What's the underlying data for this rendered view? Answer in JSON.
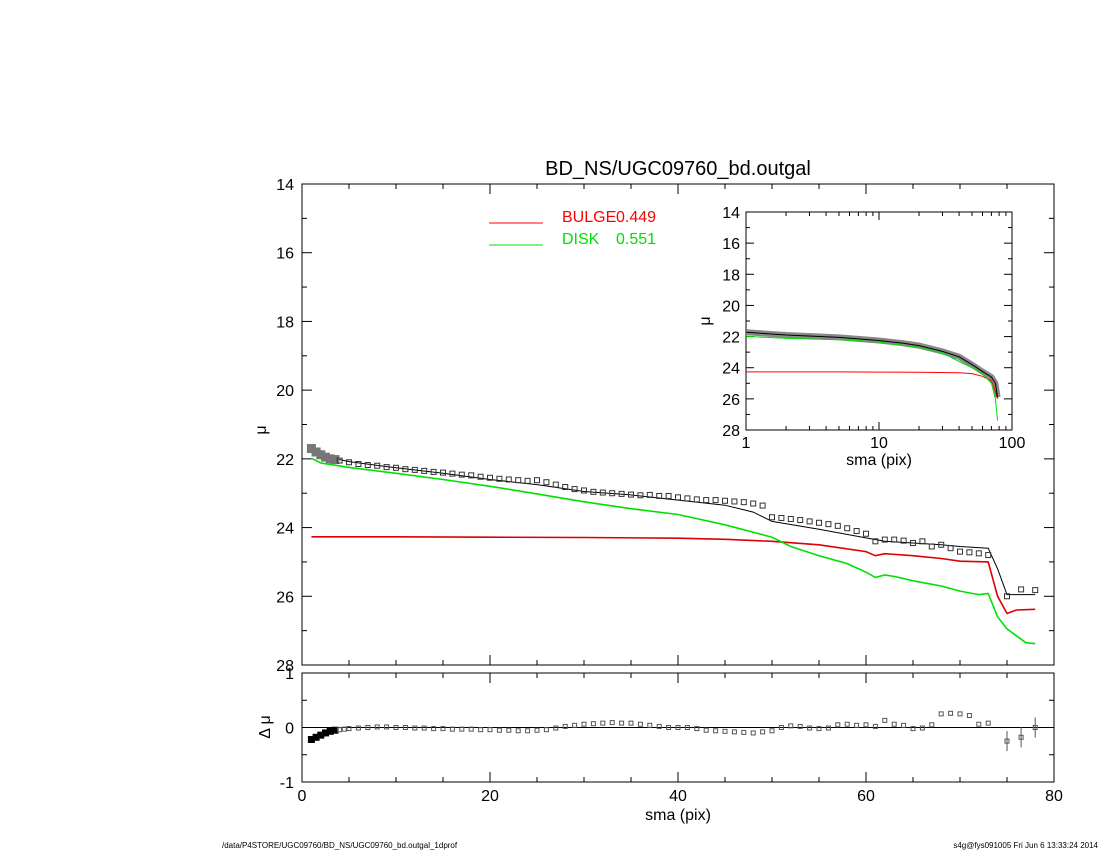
{
  "chart_data": [
    {
      "type": "line",
      "panel": "main",
      "title": "BD_NS/UGC09760_bd.outgal",
      "xlabel": "",
      "ylabel": "μ",
      "xlim": [
        0,
        80
      ],
      "ylim": [
        28,
        14
      ],
      "xticks": [
        "0",
        "20",
        "40",
        "60",
        "80"
      ],
      "yticks": [
        "14",
        "16",
        "18",
        "20",
        "22",
        "24",
        "26",
        "28"
      ],
      "legend": {
        "placement": "top-center",
        "entries": [
          {
            "label": "BULGE",
            "value": "0.449",
            "color": "#ff0000"
          },
          {
            "label": "DISK",
            "value": "0.551",
            "color": "#00e000"
          }
        ]
      },
      "series": [
        {
          "name": "BULGE",
          "color": "#dd0000",
          "x": [
            1,
            10,
            20,
            30,
            40,
            45,
            50,
            55,
            60,
            61,
            62,
            65,
            68,
            70,
            73,
            74,
            75,
            76,
            78
          ],
          "y": [
            24.27,
            24.27,
            24.28,
            24.29,
            24.31,
            24.34,
            24.4,
            24.5,
            24.7,
            24.82,
            24.76,
            24.82,
            24.9,
            24.98,
            25.0,
            26.0,
            26.5,
            26.4,
            26.38
          ]
        },
        {
          "name": "DISK",
          "color": "#00e000",
          "x": [
            1,
            2,
            5,
            10,
            15,
            20,
            25,
            30,
            35,
            40,
            45,
            50,
            52,
            55,
            58,
            60,
            61,
            62,
            63,
            65,
            68,
            70,
            72,
            73,
            74,
            75,
            76,
            77,
            78
          ],
          "y": [
            21.98,
            22.12,
            22.25,
            22.42,
            22.6,
            22.8,
            23.02,
            23.25,
            23.45,
            23.62,
            23.92,
            24.28,
            24.55,
            24.82,
            25.05,
            25.3,
            25.45,
            25.38,
            25.42,
            25.55,
            25.7,
            25.85,
            25.95,
            25.92,
            26.6,
            26.95,
            27.15,
            27.35,
            27.38
          ]
        },
        {
          "name": "",
          "color": "#000000",
          "x": [
            1,
            2,
            5,
            10,
            15,
            20,
            25,
            30,
            35,
            40,
            45,
            48,
            50,
            55,
            60,
            62,
            65,
            68,
            70,
            73,
            74,
            75,
            78
          ],
          "y": [
            21.72,
            21.9,
            22.08,
            22.26,
            22.42,
            22.6,
            22.75,
            22.95,
            23.05,
            23.2,
            23.35,
            23.55,
            23.82,
            24.05,
            24.3,
            24.4,
            24.45,
            24.5,
            24.55,
            24.6,
            25.2,
            25.95,
            25.95
          ]
        }
      ],
      "points": {
        "name": "",
        "marker": "square",
        "x": [
          1,
          1.5,
          2,
          2.5,
          3,
          3.5,
          4,
          5,
          6,
          7,
          8,
          9,
          10,
          11,
          12,
          13,
          14,
          15,
          16,
          17,
          18,
          19,
          20,
          21,
          22,
          23,
          24,
          25,
          26,
          27,
          28,
          29,
          30,
          31,
          32,
          33,
          34,
          35,
          36,
          37,
          38,
          39,
          40,
          41,
          42,
          43,
          44,
          45,
          46,
          47,
          48,
          49,
          50,
          51,
          52,
          53,
          54,
          55,
          56,
          57,
          58,
          59,
          60,
          61,
          62,
          63,
          64,
          65,
          66,
          67,
          68,
          69,
          70,
          71,
          72,
          73,
          75,
          76.5,
          78
        ],
        "y": [
          21.7,
          21.8,
          21.88,
          21.95,
          22.0,
          22.02,
          22.05,
          22.1,
          22.15,
          22.18,
          22.2,
          22.24,
          22.26,
          22.3,
          22.32,
          22.35,
          22.38,
          22.4,
          22.43,
          22.46,
          22.48,
          22.52,
          22.55,
          22.58,
          22.6,
          22.62,
          22.64,
          22.62,
          22.68,
          22.75,
          22.82,
          22.88,
          22.92,
          22.96,
          22.98,
          23.0,
          23.02,
          23.04,
          23.06,
          23.05,
          23.08,
          23.08,
          23.12,
          23.15,
          23.18,
          23.2,
          23.2,
          23.22,
          23.24,
          23.26,
          23.3,
          23.36,
          23.7,
          23.72,
          23.75,
          23.78,
          23.82,
          23.86,
          23.9,
          23.95,
          24.02,
          24.1,
          24.18,
          24.4,
          24.35,
          24.35,
          24.38,
          24.45,
          24.4,
          24.55,
          24.5,
          24.6,
          24.7,
          24.72,
          24.75,
          24.8,
          26.0,
          25.8,
          25.82
        ]
      }
    },
    {
      "type": "scatter",
      "panel": "residuals",
      "xlabel": "sma (pix)",
      "ylabel": "Δ μ",
      "xlim": [
        0,
        80
      ],
      "ylim": [
        -1,
        1
      ],
      "xticks": [
        "0",
        "20",
        "40",
        "60",
        "80"
      ],
      "yticks": [
        "1",
        "0",
        "-1"
      ],
      "zero_line": true,
      "x": [
        1,
        1.5,
        2,
        2.5,
        3,
        3.5,
        4,
        4.5,
        5,
        6,
        7,
        8,
        9,
        10,
        11,
        12,
        13,
        14,
        15,
        16,
        17,
        18,
        19,
        20,
        21,
        22,
        23,
        24,
        25,
        26,
        27,
        28,
        29,
        30,
        31,
        32,
        33,
        34,
        35,
        36,
        37,
        38,
        39,
        40,
        41,
        42,
        43,
        44,
        45,
        46,
        47,
        48,
        49,
        50,
        51,
        52,
        53,
        54,
        55,
        56,
        57,
        58,
        59,
        60,
        61,
        62,
        63,
        64,
        65,
        66,
        67,
        68,
        69,
        70,
        71,
        72,
        73,
        75,
        76.5,
        78
      ],
      "y": [
        -0.22,
        -0.18,
        -0.14,
        -0.1,
        -0.07,
        -0.05,
        -0.04,
        -0.03,
        -0.02,
        -0.01,
        0.0,
        0.01,
        0.01,
        0.0,
        0.0,
        -0.01,
        -0.01,
        -0.02,
        -0.02,
        -0.03,
        -0.03,
        -0.03,
        -0.04,
        -0.04,
        -0.05,
        -0.05,
        -0.06,
        -0.06,
        -0.05,
        -0.04,
        -0.01,
        0.02,
        0.04,
        0.06,
        0.07,
        0.08,
        0.09,
        0.08,
        0.08,
        0.06,
        0.04,
        0.02,
        0.0,
        0.0,
        0.0,
        -0.02,
        -0.05,
        -0.06,
        -0.07,
        -0.08,
        -0.09,
        -0.1,
        -0.08,
        -0.06,
        0.0,
        0.03,
        0.02,
        -0.01,
        -0.02,
        -0.01,
        0.05,
        0.06,
        0.04,
        0.05,
        0.02,
        0.13,
        0.06,
        0.04,
        -0.02,
        -0.01,
        0.05,
        0.25,
        0.26,
        0.25,
        0.22,
        0.06,
        0.08,
        -0.25,
        -0.18,
        0.0
      ],
      "error_bars_at_x": [
        75,
        76.5,
        78
      ]
    },
    {
      "type": "line",
      "panel": "inset",
      "xlabel": "sma (pix)",
      "ylabel": "μ",
      "xscale": "log",
      "xlim": [
        1,
        100
      ],
      "ylim": [
        28,
        14
      ],
      "xticks": [
        "1",
        "10",
        "100"
      ],
      "yticks": [
        "14",
        "16",
        "18",
        "20",
        "22",
        "24",
        "26",
        "28"
      ],
      "series": [
        {
          "name": "BULGE",
          "color": "#ff0000",
          "x": [
            1,
            5,
            10,
            20,
            40,
            50,
            60,
            70,
            75,
            78
          ],
          "y": [
            24.27,
            24.27,
            24.28,
            24.29,
            24.32,
            24.38,
            24.55,
            24.85,
            25.5,
            26.0
          ]
        },
        {
          "name": "DISK",
          "color": "#00e000",
          "x": [
            1,
            2,
            5,
            10,
            20,
            30,
            40,
            50,
            60,
            70,
            75,
            78
          ],
          "y": [
            21.98,
            22.12,
            22.2,
            22.35,
            22.7,
            23.05,
            23.6,
            24.0,
            24.4,
            25.0,
            26.0,
            27.4
          ]
        },
        {
          "name": "",
          "color": "#000000",
          "x": [
            1,
            2,
            5,
            10,
            15,
            20,
            30,
            40,
            50,
            60,
            70,
            75,
            78
          ],
          "y": [
            21.72,
            21.9,
            22.05,
            22.25,
            22.42,
            22.58,
            22.95,
            23.3,
            23.8,
            24.25,
            24.6,
            25.0,
            25.9
          ]
        }
      ]
    }
  ],
  "footer": {
    "path": "/data/P4STORE/UGC09760/BD_NS/UGC09760_bd.outgal_1dprof",
    "stamp": "s4g@fys091005  Fri Jun  6 13:33:24 2014"
  }
}
